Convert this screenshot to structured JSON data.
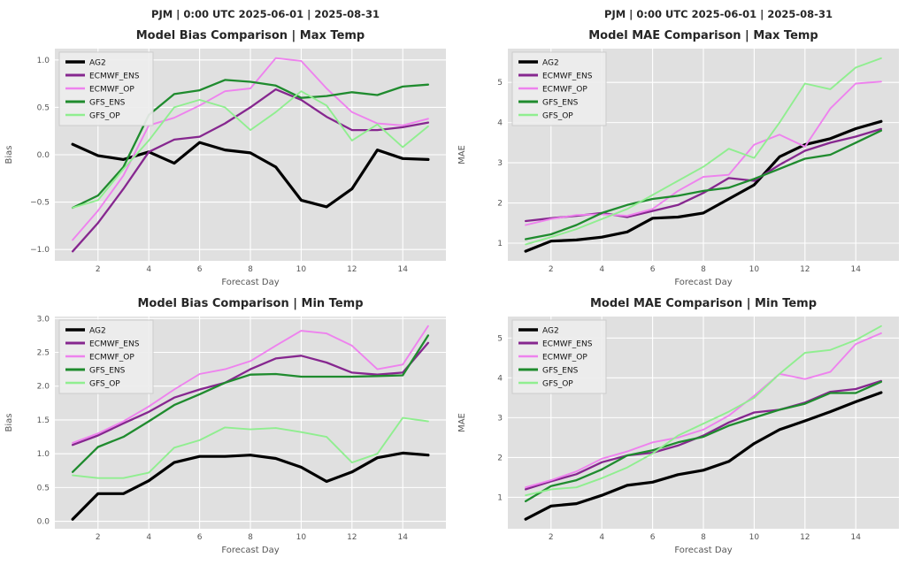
{
  "figure": {
    "background": "#ffffff",
    "plot_background": "#e0e0e0",
    "grid_color": "#ffffff",
    "tick_color": "#555555",
    "title_color": "#262626"
  },
  "suptitles": {
    "left": "PJM | 0:00 UTC 2025-06-01 | 2025-08-31",
    "right": "PJM | 0:00 UTC 2025-06-01 | 2025-08-31"
  },
  "legend": {
    "entries": [
      "AG2",
      "ECMWF_ENS",
      "ECMWF_OP",
      "GFS_ENS",
      "GFS_OP"
    ],
    "colors": [
      "#000000",
      "#86278f",
      "#ee82ee",
      "#1f8b2e",
      "#90ee90"
    ],
    "position": "upper left"
  },
  "chart_data": [
    {
      "type": "line",
      "title": "Model Bias Comparison | Max Temp",
      "xlabel": "Forecast Day",
      "ylabel": "Bias",
      "x": [
        1,
        2,
        3,
        4,
        5,
        6,
        7,
        8,
        9,
        10,
        11,
        12,
        13,
        14,
        15
      ],
      "xlim": [
        0.3,
        15.7
      ],
      "ylim": [
        -1.12,
        1.12
      ],
      "xtick_values": [
        2,
        4,
        6,
        8,
        10,
        12,
        14
      ],
      "xtick_labels": [
        "2",
        "4",
        "6",
        "8",
        "10",
        "12",
        "14"
      ],
      "ytick_values": [
        -1.0,
        -0.5,
        0.0,
        0.5,
        1.0
      ],
      "ytick_labels": [
        "−1.0",
        "−0.5",
        "0.0",
        "0.5",
        "1.0"
      ],
      "grid": true,
      "legend_position": "upper left",
      "series": [
        {
          "name": "AG2",
          "color": "#000000",
          "linewidth": 3.2,
          "values": [
            0.11,
            -0.01,
            -0.05,
            0.03,
            -0.09,
            0.13,
            0.05,
            0.02,
            -0.13,
            -0.48,
            -0.55,
            -0.36,
            0.05,
            -0.04,
            -0.05
          ]
        },
        {
          "name": "ECMWF_ENS",
          "color": "#86278f",
          "linewidth": 2.3,
          "values": [
            -1.02,
            -0.72,
            -0.36,
            0.03,
            0.16,
            0.19,
            0.33,
            0.5,
            0.69,
            0.58,
            0.4,
            0.26,
            0.26,
            0.29,
            0.34
          ]
        },
        {
          "name": "ECMWF_OP",
          "color": "#ee82ee",
          "linewidth": 1.9,
          "values": [
            -0.9,
            -0.59,
            -0.22,
            0.31,
            0.39,
            0.52,
            0.67,
            0.7,
            1.02,
            0.99,
            0.7,
            0.45,
            0.33,
            0.31,
            0.38
          ]
        },
        {
          "name": "GFS_ENS",
          "color": "#1f8b2e",
          "linewidth": 2.3,
          "values": [
            -0.56,
            -0.43,
            -0.13,
            0.42,
            0.64,
            0.68,
            0.79,
            0.77,
            0.73,
            0.6,
            0.62,
            0.66,
            0.63,
            0.72,
            0.74
          ]
        },
        {
          "name": "GFS_OP",
          "color": "#90ee90",
          "linewidth": 1.9,
          "values": [
            -0.56,
            -0.48,
            -0.15,
            0.15,
            0.5,
            0.58,
            0.5,
            0.26,
            0.45,
            0.67,
            0.52,
            0.15,
            0.32,
            0.08,
            0.3
          ]
        }
      ]
    },
    {
      "type": "line",
      "title": "Model MAE Comparison | Max Temp",
      "xlabel": "Forecast Day",
      "ylabel": "MAE",
      "x": [
        1,
        2,
        3,
        4,
        5,
        6,
        7,
        8,
        9,
        10,
        11,
        12,
        13,
        14,
        15
      ],
      "xlim": [
        0.3,
        15.7
      ],
      "ylim": [
        0.56,
        5.84
      ],
      "xtick_values": [
        2,
        4,
        6,
        8,
        10,
        12,
        14
      ],
      "xtick_labels": [
        "2",
        "4",
        "6",
        "8",
        "10",
        "12",
        "14"
      ],
      "ytick_values": [
        1,
        2,
        3,
        4,
        5
      ],
      "ytick_labels": [
        "1",
        "2",
        "3",
        "4",
        "5"
      ],
      "grid": true,
      "legend_position": "upper left",
      "series": [
        {
          "name": "AG2",
          "color": "#000000",
          "linewidth": 3.2,
          "values": [
            0.8,
            1.05,
            1.08,
            1.15,
            1.28,
            1.62,
            1.65,
            1.75,
            2.1,
            2.45,
            3.15,
            3.45,
            3.6,
            3.85,
            4.03
          ]
        },
        {
          "name": "ECMWF_ENS",
          "color": "#86278f",
          "linewidth": 2.3,
          "values": [
            1.55,
            1.62,
            1.68,
            1.75,
            1.65,
            1.8,
            1.95,
            2.25,
            2.62,
            2.55,
            2.95,
            3.3,
            3.5,
            3.65,
            3.84
          ]
        },
        {
          "name": "ECMWF_OP",
          "color": "#ee82ee",
          "linewidth": 1.9,
          "values": [
            1.45,
            1.6,
            1.7,
            1.72,
            1.68,
            1.85,
            2.3,
            2.65,
            2.7,
            3.45,
            3.7,
            3.4,
            4.35,
            4.97,
            5.02
          ]
        },
        {
          "name": "GFS_ENS",
          "color": "#1f8b2e",
          "linewidth": 2.3,
          "values": [
            1.1,
            1.22,
            1.45,
            1.75,
            1.95,
            2.1,
            2.18,
            2.3,
            2.38,
            2.6,
            2.85,
            3.1,
            3.2,
            3.5,
            3.8
          ]
        },
        {
          "name": "GFS_OP",
          "color": "#90ee90",
          "linewidth": 1.9,
          "values": [
            0.97,
            1.15,
            1.35,
            1.6,
            1.85,
            2.2,
            2.55,
            2.9,
            3.35,
            3.12,
            4.0,
            4.97,
            4.83,
            5.37,
            5.6
          ]
        }
      ]
    },
    {
      "type": "line",
      "title": "Model Bias Comparison | Min Temp",
      "xlabel": "Forecast Day",
      "ylabel": "Bias",
      "x": [
        1,
        2,
        3,
        4,
        5,
        6,
        7,
        8,
        9,
        10,
        11,
        12,
        13,
        14,
        15
      ],
      "xlim": [
        0.3,
        15.7
      ],
      "ylim": [
        -0.11,
        3.03
      ],
      "xtick_values": [
        2,
        4,
        6,
        8,
        10,
        12,
        14
      ],
      "xtick_labels": [
        "2",
        "4",
        "6",
        "8",
        "10",
        "12",
        "14"
      ],
      "ytick_values": [
        0.0,
        0.5,
        1.0,
        1.5,
        2.0,
        2.5,
        3.0
      ],
      "ytick_labels": [
        "0.0",
        "0.5",
        "1.0",
        "1.5",
        "2.0",
        "2.5",
        "3.0"
      ],
      "grid": true,
      "legend_position": "upper left",
      "series": [
        {
          "name": "AG2",
          "color": "#000000",
          "linewidth": 3.2,
          "values": [
            0.03,
            0.41,
            0.41,
            0.6,
            0.87,
            0.96,
            0.96,
            0.98,
            0.93,
            0.8,
            0.59,
            0.73,
            0.94,
            1.01,
            0.98
          ]
        },
        {
          "name": "ECMWF_ENS",
          "color": "#86278f",
          "linewidth": 2.3,
          "values": [
            1.13,
            1.27,
            1.45,
            1.62,
            1.83,
            1.95,
            2.05,
            2.25,
            2.41,
            2.45,
            2.35,
            2.2,
            2.17,
            2.2,
            2.64
          ]
        },
        {
          "name": "ECMWF_OP",
          "color": "#ee82ee",
          "linewidth": 1.9,
          "values": [
            1.16,
            1.3,
            1.48,
            1.7,
            1.95,
            2.18,
            2.25,
            2.37,
            2.6,
            2.82,
            2.78,
            2.6,
            2.25,
            2.32,
            2.89
          ]
        },
        {
          "name": "GFS_ENS",
          "color": "#1f8b2e",
          "linewidth": 2.3,
          "values": [
            0.73,
            1.1,
            1.25,
            1.48,
            1.72,
            1.88,
            2.05,
            2.17,
            2.18,
            2.14,
            2.14,
            2.14,
            2.15,
            2.16,
            2.75
          ]
        },
        {
          "name": "GFS_OP",
          "color": "#90ee90",
          "linewidth": 1.9,
          "values": [
            0.68,
            0.64,
            0.64,
            0.72,
            1.09,
            1.2,
            1.39,
            1.36,
            1.38,
            1.32,
            1.25,
            0.87,
            1.0,
            1.53,
            1.48
          ]
        }
      ]
    },
    {
      "type": "line",
      "title": "Model MAE Comparison | Min Temp",
      "xlabel": "Forecast Day",
      "ylabel": "MAE",
      "x": [
        1,
        2,
        3,
        4,
        5,
        6,
        7,
        8,
        9,
        10,
        11,
        12,
        13,
        14,
        15
      ],
      "xlim": [
        0.3,
        15.7
      ],
      "ylim": [
        0.21,
        5.54
      ],
      "xtick_values": [
        2,
        4,
        6,
        8,
        10,
        12,
        14
      ],
      "xtick_labels": [
        "2",
        "4",
        "6",
        "8",
        "10",
        "12",
        "14"
      ],
      "ytick_values": [
        1,
        2,
        3,
        4,
        5
      ],
      "ytick_labels": [
        "1",
        "2",
        "3",
        "4",
        "5"
      ],
      "grid": true,
      "legend_position": "upper left",
      "series": [
        {
          "name": "AG2",
          "color": "#000000",
          "linewidth": 3.2,
          "values": [
            0.45,
            0.78,
            0.84,
            1.05,
            1.3,
            1.38,
            1.57,
            1.68,
            1.9,
            2.35,
            2.7,
            2.92,
            3.15,
            3.4,
            3.63
          ]
        },
        {
          "name": "ECMWF_ENS",
          "color": "#86278f",
          "linewidth": 2.3,
          "values": [
            1.2,
            1.4,
            1.58,
            1.88,
            2.05,
            2.12,
            2.3,
            2.55,
            2.88,
            3.13,
            3.2,
            3.38,
            3.65,
            3.72,
            3.92
          ]
        },
        {
          "name": "ECMWF_OP",
          "color": "#ee82ee",
          "linewidth": 1.9,
          "values": [
            1.25,
            1.43,
            1.65,
            1.97,
            2.15,
            2.38,
            2.5,
            2.7,
            3.05,
            3.55,
            4.1,
            3.97,
            4.15,
            4.85,
            5.12
          ]
        },
        {
          "name": "GFS_ENS",
          "color": "#1f8b2e",
          "linewidth": 2.3,
          "values": [
            0.9,
            1.28,
            1.43,
            1.7,
            2.05,
            2.18,
            2.38,
            2.52,
            2.8,
            3.0,
            3.2,
            3.35,
            3.62,
            3.62,
            3.9
          ]
        },
        {
          "name": "GFS_OP",
          "color": "#90ee90",
          "linewidth": 1.9,
          "values": [
            1.05,
            1.2,
            1.25,
            1.48,
            1.75,
            2.1,
            2.55,
            2.85,
            3.15,
            3.5,
            4.1,
            4.63,
            4.7,
            4.95,
            5.3
          ]
        }
      ]
    }
  ]
}
